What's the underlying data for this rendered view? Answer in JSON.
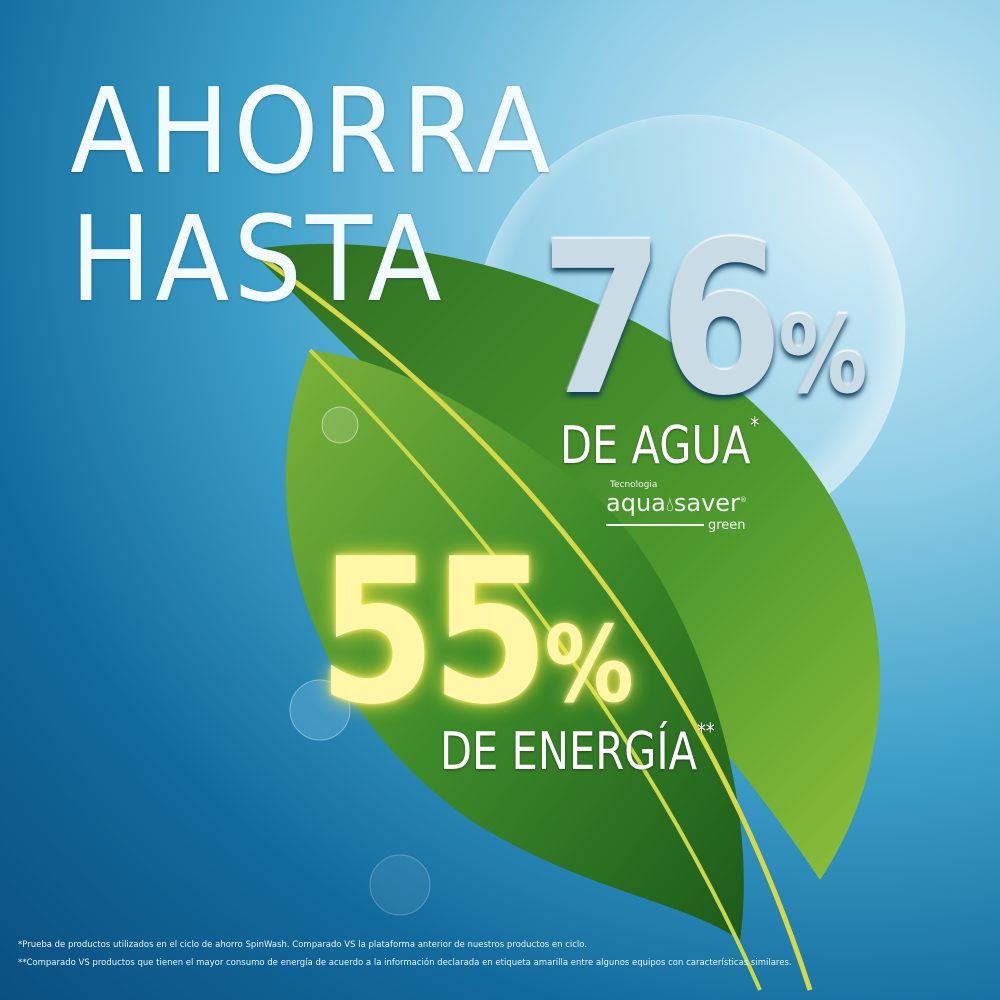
{
  "headline": {
    "line1": "AHORRA",
    "line2": "HASTA"
  },
  "water": {
    "value": "76",
    "percent": "%",
    "label": "DE AGUA",
    "mark": "*"
  },
  "logo": {
    "prefix": "Tecnologia",
    "word1": "aqua",
    "word2": "saver",
    "suffix": "green",
    "registered": "®",
    "icon": "water-drop-icon"
  },
  "energy": {
    "value": "55",
    "percent": "%",
    "label": "DE ENERGÍA",
    "mark": "**"
  },
  "footnotes": [
    "*Prueba de productos utilizados en el ciclo de ahorro SpinWash. Comparado VS la plataforma anterior de nuestros productos en ciclo.",
    "**Comparado VS productos que tienen el mayor consumo de energía de acuerdo a la información declarada en etiqueta amarilla entre algunos equipos con características similares."
  ],
  "colors": {
    "background": "#126a9c",
    "leaf": "#3f8a2a",
    "energy_text": "#fff6a8"
  }
}
